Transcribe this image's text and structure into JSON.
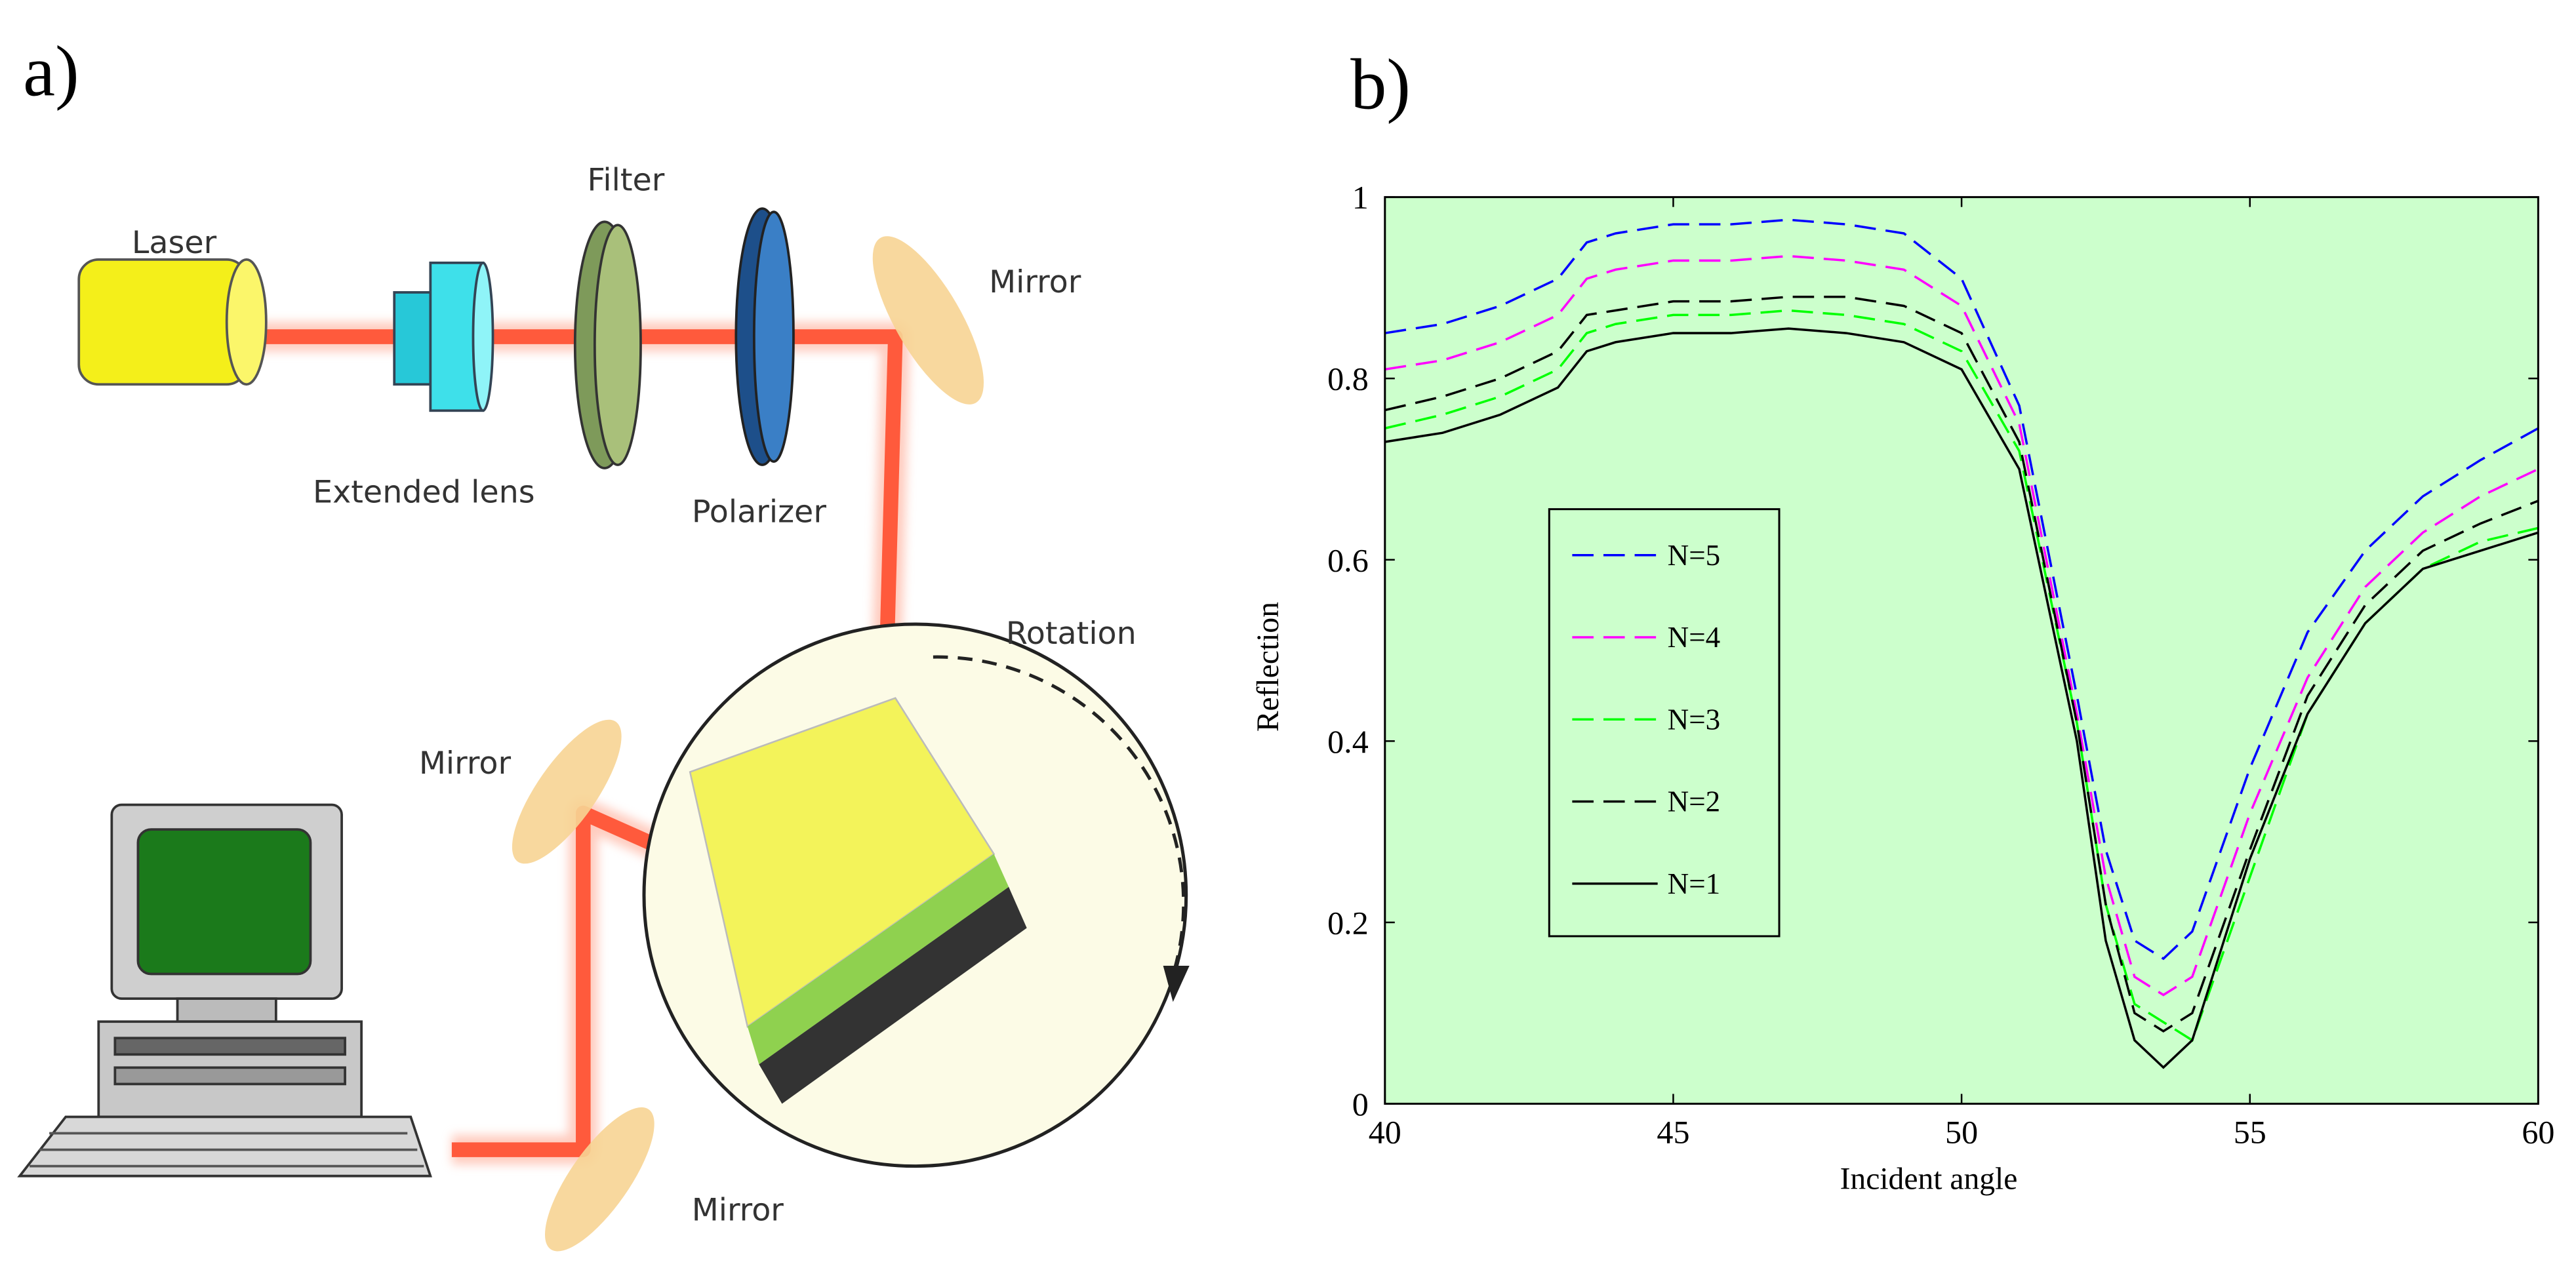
{
  "panel_a": {
    "panel_label": "a)",
    "labels": {
      "laser": "Laser",
      "filter": "Filter",
      "mirror_top": "Mirror",
      "extended_lens": "Extended lens",
      "polarizer": "Polarizer",
      "rotation": "Rotation",
      "mirror_left": "Mirror",
      "mirror_bottom": "Mirror"
    }
  },
  "chart_data": {
    "type": "line",
    "panel_label": "b)",
    "xlabel": "Incident angle",
    "ylabel": "Reflection",
    "x": [
      40,
      41,
      42,
      43,
      43.5,
      44,
      45,
      46,
      47,
      48,
      49,
      50,
      51,
      52,
      52.5,
      53,
      53.5,
      54,
      55,
      56,
      57,
      58,
      59,
      60
    ],
    "series": [
      {
        "name": "N=5",
        "color": "#0000ff",
        "dashed": true,
        "values": [
          0.85,
          0.86,
          0.88,
          0.91,
          0.95,
          0.96,
          0.97,
          0.97,
          0.975,
          0.97,
          0.96,
          0.91,
          0.77,
          0.45,
          0.28,
          0.18,
          0.16,
          0.19,
          0.37,
          0.52,
          0.61,
          0.67,
          0.71,
          0.745
        ]
      },
      {
        "name": "N=4",
        "color": "#ff00ff",
        "dashed": true,
        "values": [
          0.81,
          0.82,
          0.84,
          0.87,
          0.91,
          0.92,
          0.93,
          0.93,
          0.935,
          0.93,
          0.92,
          0.88,
          0.75,
          0.43,
          0.25,
          0.14,
          0.12,
          0.14,
          0.32,
          0.47,
          0.57,
          0.63,
          0.67,
          0.7
        ]
      },
      {
        "name": "N=3",
        "color": "#00ff00",
        "dashed": true,
        "values": [
          0.745,
          0.76,
          0.78,
          0.81,
          0.85,
          0.86,
          0.87,
          0.87,
          0.875,
          0.87,
          0.86,
          0.83,
          0.72,
          0.42,
          0.22,
          0.11,
          0.09,
          0.07,
          0.25,
          0.43,
          0.53,
          0.59,
          0.62,
          0.635
        ]
      },
      {
        "name": "N=2",
        "color": "#000000",
        "dashed": true,
        "values": [
          0.765,
          0.78,
          0.8,
          0.83,
          0.87,
          0.875,
          0.885,
          0.885,
          0.89,
          0.89,
          0.88,
          0.85,
          0.73,
          0.42,
          0.22,
          0.1,
          0.08,
          0.1,
          0.28,
          0.45,
          0.55,
          0.61,
          0.64,
          0.665
        ]
      },
      {
        "name": "N=1",
        "color": "#000000",
        "dashed": false,
        "values": [
          0.73,
          0.74,
          0.76,
          0.79,
          0.83,
          0.84,
          0.85,
          0.85,
          0.855,
          0.85,
          0.84,
          0.81,
          0.7,
          0.4,
          0.18,
          0.07,
          0.04,
          0.07,
          0.27,
          0.43,
          0.53,
          0.59,
          0.61,
          0.63
        ]
      }
    ],
    "xlim": [
      40,
      60
    ],
    "ylim": [
      0,
      1
    ],
    "xticks": [
      40,
      45,
      50,
      55,
      60
    ],
    "yticks": [
      0,
      0.2,
      0.4,
      0.6,
      0.8,
      1
    ],
    "legend": "center left",
    "background": "#ccffcc"
  }
}
